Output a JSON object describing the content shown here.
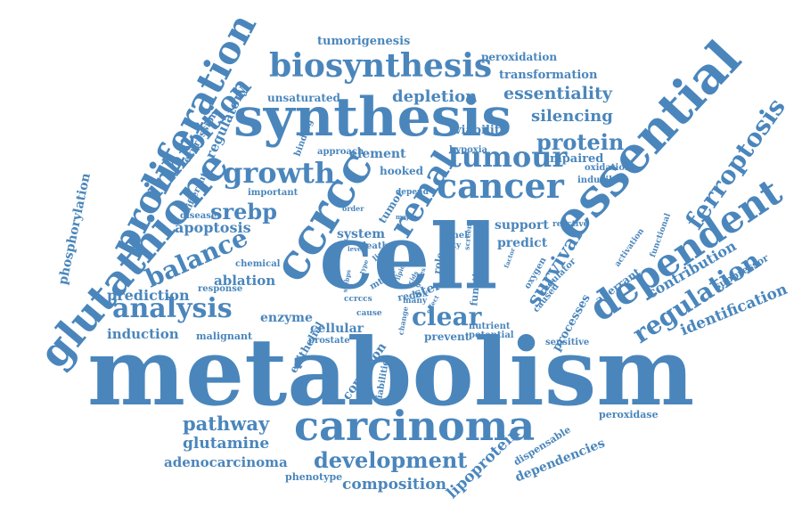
{
  "color": "#4a86bc",
  "words": [
    {
      "text": "metabolism"
    },
    {
      "text": "cell"
    },
    {
      "text": "synthesis"
    },
    {
      "text": "essential"
    },
    {
      "text": "carcinoma"
    },
    {
      "text": "biosynthesis"
    },
    {
      "text": "glutathione"
    },
    {
      "text": "proliferation"
    },
    {
      "text": "dependent"
    },
    {
      "text": "ccrcc"
    },
    {
      "text": "cancer"
    },
    {
      "text": "renal"
    },
    {
      "text": "tumour"
    },
    {
      "text": "ferroptosis"
    },
    {
      "text": "growth"
    },
    {
      "text": "analysis"
    },
    {
      "text": "balance"
    },
    {
      "text": "regulation"
    },
    {
      "text": "inhibition"
    },
    {
      "text": "development"
    },
    {
      "text": "clear"
    },
    {
      "text": "protein"
    },
    {
      "text": "pathway"
    },
    {
      "text": "srebp"
    },
    {
      "text": "survival"
    },
    {
      "text": "identification"
    },
    {
      "text": "essentiality"
    },
    {
      "text": "glutamine"
    },
    {
      "text": "depletion"
    },
    {
      "text": "silencing"
    },
    {
      "text": "regulatory"
    },
    {
      "text": "phosphorylation"
    },
    {
      "text": "contribution"
    },
    {
      "text": "adenocarcinoma"
    },
    {
      "text": "lipoprotein"
    },
    {
      "text": "composition"
    },
    {
      "text": "dependencies"
    },
    {
      "text": "tumorigenesis"
    },
    {
      "text": "peroxidation"
    },
    {
      "text": "transformation"
    },
    {
      "text": "unsaturated"
    },
    {
      "text": "viability"
    },
    {
      "text": "element"
    },
    {
      "text": "impaired"
    },
    {
      "text": "hooked"
    },
    {
      "text": "apoptosis"
    },
    {
      "text": "ablation"
    },
    {
      "text": "prediction"
    },
    {
      "text": "induction"
    },
    {
      "text": "enzyme"
    },
    {
      "text": "cellular"
    },
    {
      "text": "system"
    },
    {
      "text": "support"
    },
    {
      "text": "predict"
    },
    {
      "text": "prevent"
    },
    {
      "text": "condition"
    },
    {
      "text": "epithelial"
    },
    {
      "text": "processes"
    },
    {
      "text": "aberrant"
    },
    {
      "text": "suppressor"
    },
    {
      "text": "peroxidase"
    },
    {
      "text": "dispensable"
    },
    {
      "text": "phenotype"
    },
    {
      "text": "expression"
    },
    {
      "text": "malignant"
    },
    {
      "text": "function"
    },
    {
      "text": "oxidation"
    },
    {
      "text": "inducible"
    },
    {
      "text": "hypoxia"
    },
    {
      "text": "approach"
    },
    {
      "text": "binding"
    },
    {
      "text": "important"
    },
    {
      "text": "different"
    },
    {
      "text": "disease"
    },
    {
      "text": "chemical"
    },
    {
      "text": "response"
    },
    {
      "text": "prostate"
    },
    {
      "text": "sterol"
    },
    {
      "text": "redox"
    },
    {
      "text": "mtorc"
    },
    {
      "text": "nutrient"
    },
    {
      "text": "potential"
    },
    {
      "text": "sensitive"
    },
    {
      "text": "liabilities"
    },
    {
      "text": "role"
    },
    {
      "text": "panel"
    },
    {
      "text": "fatty"
    },
    {
      "text": "oxygen"
    },
    {
      "text": "caused"
    },
    {
      "text": "regulator"
    },
    {
      "text": "activation"
    },
    {
      "text": "functional"
    },
    {
      "text": "reactive"
    },
    {
      "text": "tumor"
    },
    {
      "text": "depend"
    },
    {
      "text": "death"
    },
    {
      "text": "line"
    },
    {
      "text": "order"
    },
    {
      "text": "cause"
    },
    {
      "text": "many"
    },
    {
      "text": "change"
    },
    {
      "text": "screen"
    },
    {
      "text": "factor"
    },
    {
      "text": "major"
    },
    {
      "text": "srebps"
    },
    {
      "text": "ccrccs"
    },
    {
      "text": "level"
    },
    {
      "text": "effect"
    },
    {
      "text": "lipid"
    },
    {
      "text": "nrf"
    },
    {
      "text": "genes"
    },
    {
      "text": "acids"
    },
    {
      "text": "type"
    }
  ]
}
